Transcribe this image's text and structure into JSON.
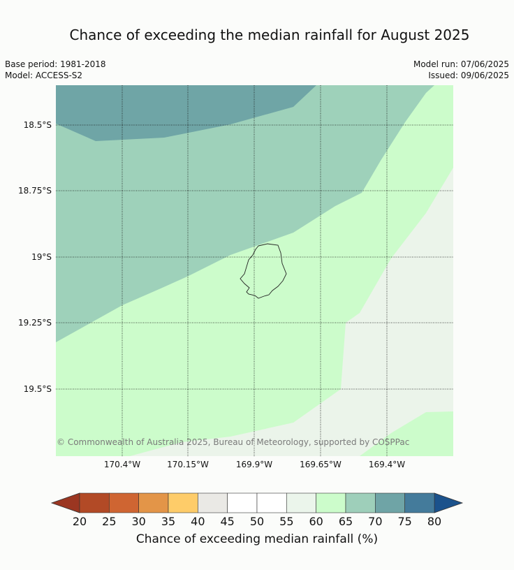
{
  "title": "Chance of exceeding the median rainfall for August 2025",
  "meta": {
    "base_period": "Base period: 1981-2018",
    "model": "Model: ACCESS-S2",
    "model_run": "Model run: 07/06/2025",
    "issued": "Issued: 09/06/2025"
  },
  "map": {
    "latitude_labels": [
      "18.5°S",
      "18.75°S",
      "19°S",
      "19.25°S",
      "19.5°S"
    ],
    "longitude_labels": [
      "170.4°W",
      "170.15°W",
      "169.9°W",
      "169.65°W",
      "169.4°W"
    ],
    "copyright": "© Commonwealth of Australia 2025, Bureau of Meteorology, supported by COSPPac",
    "zone_colors": {
      "70-75": "#6fa5a6",
      "65-70": "#9ed1ba",
      "60-65": "#ccfccb",
      "55-60": "#ebf4ea"
    }
  },
  "colorbar": {
    "label": "Chance of exceeding median rainfall (%)",
    "ticks": [
      "20",
      "25",
      "30",
      "35",
      "40",
      "45",
      "50",
      "55",
      "60",
      "65",
      "70",
      "75",
      "80"
    ],
    "colors": [
      "#b24a26",
      "#cf6532",
      "#e39548",
      "#fecc69",
      "#eae9e5",
      "#ffffff",
      "#ffffff",
      "#ebf5eb",
      "#ccfccb",
      "#9ecfba",
      "#6fa4a6",
      "#447b9b"
    ],
    "low_extension_color": "#9b3621",
    "high_extension_color": "#1b528c"
  }
}
